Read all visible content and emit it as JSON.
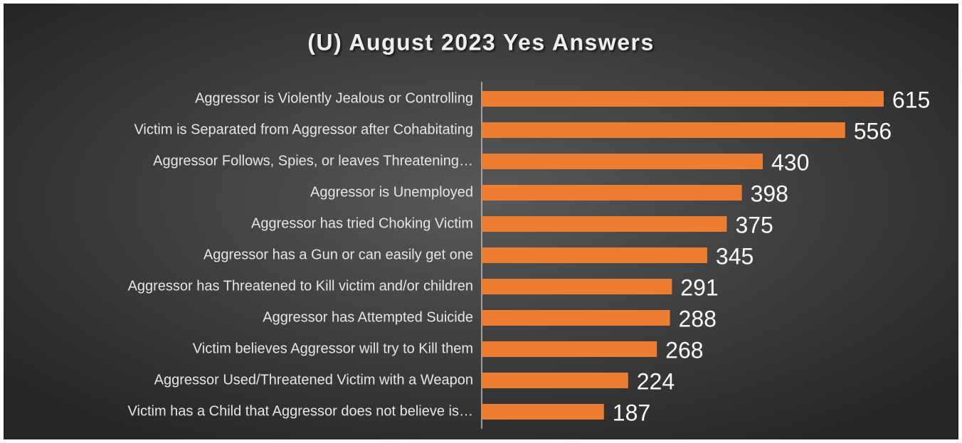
{
  "chart_data": {
    "type": "barh",
    "title": "(U) August 2023 Yes Answers",
    "categories": [
      "Aggressor is Violently Jealous or Controlling",
      "Victim is Separated from Aggressor after Cohabitating",
      "Aggressor Follows, Spies, or leaves Threatening…",
      "Aggressor is Unemployed",
      "Aggressor has tried Choking Victim",
      "Aggressor has a Gun or can easily get one",
      "Aggressor has Threatened to Kill victim and/or children",
      "Aggressor has Attempted Suicide",
      "Victim believes Aggressor will try to Kill them",
      "Aggressor Used/Threatened Victim with a Weapon",
      "Victim has a Child that Aggressor does not believe is…"
    ],
    "values": [
      615,
      556,
      430,
      398,
      375,
      345,
      291,
      288,
      268,
      224,
      187
    ],
    "color": "#ed7d31",
    "xlim": [
      0,
      700
    ]
  }
}
